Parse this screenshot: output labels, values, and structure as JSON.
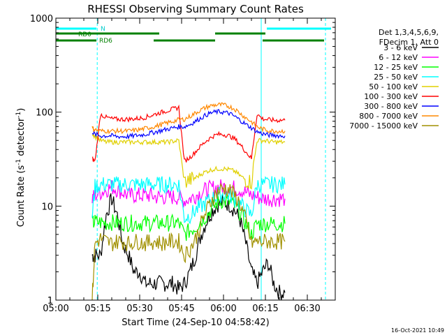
{
  "chart_data": {
    "type": "line",
    "title": "RHESSI Observing Summary Count Rates",
    "xlabel": "Start Time (24-Sep-10 04:58:42)",
    "ylabel_main": "Count Rate (s",
    "ylabel_sup1": "-1",
    "ylabel_mid": " detector",
    "ylabel_sup2": "-1",
    "ylabel_end": ")",
    "x_unit": "minutes after 05:00",
    "xlim": [
      0,
      100
    ],
    "ylim": [
      1,
      1000
    ],
    "yscale": "log",
    "x_ticks": [
      {
        "v": 0,
        "label": "05:00"
      },
      {
        "v": 15,
        "label": "05:15"
      },
      {
        "v": 30,
        "label": "05:30"
      },
      {
        "v": 45,
        "label": "05:45"
      },
      {
        "v": 60,
        "label": "06:00"
      },
      {
        "v": 75,
        "label": "06:15"
      },
      {
        "v": 90,
        "label": "06:30"
      }
    ],
    "y_ticks": [
      {
        "v": 1,
        "label": "1"
      },
      {
        "v": 10,
        "label": "10"
      },
      {
        "v": 100,
        "label": "100"
      },
      {
        "v": 1000,
        "label": "1000"
      }
    ],
    "legend": {
      "header_lines": [
        "Det 1,3,4,5,6,9,",
        "FDecim 1, Att 0"
      ],
      "placement": "right"
    },
    "series": [
      {
        "name": "3 - 6 keV",
        "color": "#000000",
        "x": [
          13,
          14,
          16,
          18,
          20,
          22,
          24,
          26,
          28,
          30,
          32,
          34,
          36,
          38,
          40,
          42,
          44,
          46,
          48,
          50,
          52,
          54,
          56,
          58,
          60,
          62,
          64,
          66,
          68,
          70,
          72,
          74,
          76,
          78,
          80,
          82
        ],
        "y": [
          3,
          3,
          3,
          8,
          12,
          8,
          4,
          3,
          2,
          2,
          1.5,
          1.5,
          1.5,
          1.5,
          1.5,
          1.5,
          1.3,
          1.5,
          2,
          3,
          5,
          7,
          9,
          10.5,
          11,
          10.5,
          9,
          7,
          4,
          2,
          1.5,
          2,
          2.5,
          1.5,
          1.2,
          1.2
        ]
      },
      {
        "name": "6 - 12 keV",
        "color": "#ff00ff",
        "x": [
          13,
          14,
          16,
          18,
          20,
          22,
          24,
          26,
          28,
          30,
          32,
          34,
          36,
          38,
          40,
          42,
          44,
          46,
          48,
          50,
          52,
          54,
          56,
          58,
          60,
          62,
          64,
          66,
          68,
          70,
          72,
          74,
          76,
          78,
          80,
          82
        ],
        "y": [
          12,
          13,
          14,
          15,
          16,
          15,
          14,
          13,
          13,
          13,
          13,
          13,
          12.5,
          12.5,
          12.5,
          12.5,
          12.5,
          11.5,
          12,
          13,
          14,
          15,
          15.5,
          16,
          16,
          16,
          15.5,
          15,
          14,
          13,
          12.5,
          12,
          12,
          12,
          12,
          12
        ]
      },
      {
        "name": "12 - 25 keV",
        "color": "#00ff00",
        "x": [
          13,
          14,
          16,
          18,
          20,
          22,
          24,
          26,
          28,
          30,
          32,
          34,
          36,
          38,
          40,
          42,
          44,
          46,
          48,
          50,
          52,
          54,
          56,
          58,
          60,
          62,
          64,
          66,
          68,
          70,
          72,
          74,
          76,
          78,
          80,
          82
        ],
        "y": [
          6.5,
          6.8,
          6.7,
          6.6,
          6.7,
          6.6,
          6.6,
          6.6,
          6.6,
          6.6,
          6.6,
          6.6,
          6.6,
          6.6,
          6.6,
          6.6,
          6.6,
          5,
          5.5,
          6,
          7,
          8,
          9.5,
          11,
          11.5,
          11,
          10,
          8.5,
          6.5,
          5,
          6.5,
          6.5,
          6.5,
          6.5,
          6.5,
          6.5
        ]
      },
      {
        "name": "25 - 50 keV",
        "color": "#00ffff",
        "x": [
          13,
          14,
          16,
          18,
          20,
          22,
          24,
          26,
          28,
          30,
          32,
          34,
          36,
          38,
          40,
          42,
          44,
          46,
          48,
          50,
          52,
          54,
          56,
          58,
          60,
          62,
          64,
          66,
          68,
          70,
          72,
          74,
          76,
          78,
          80,
          82
        ],
        "y": [
          8,
          16,
          17,
          17,
          17,
          17,
          17,
          17,
          17,
          17,
          17,
          17,
          17,
          17,
          17,
          17,
          17,
          7.5,
          8,
          9,
          10,
          11,
          12,
          13,
          13.5,
          13,
          12,
          10.5,
          9,
          8,
          17,
          17,
          17,
          17,
          17,
          17
        ]
      },
      {
        "name": "50 - 100 keV",
        "color": "#e0d000",
        "x": [
          13,
          14,
          16,
          18,
          20,
          22,
          24,
          26,
          28,
          30,
          32,
          34,
          36,
          38,
          40,
          42,
          44,
          46,
          48,
          50,
          52,
          54,
          56,
          58,
          60,
          62,
          64,
          66,
          68,
          70,
          72,
          74,
          76,
          78,
          80,
          82
        ],
        "y": [
          60,
          55,
          50,
          48,
          48,
          48,
          48,
          48,
          48,
          48,
          48,
          48,
          48,
          48,
          48,
          49,
          50,
          18,
          19,
          20,
          22,
          23.5,
          24.5,
          25,
          25,
          24.5,
          23.5,
          21,
          19,
          18,
          50,
          50,
          49,
          48,
          48,
          48
        ]
      },
      {
        "name": "100 - 300 keV",
        "color": "#ff0000",
        "x": [
          13,
          14,
          16,
          18,
          20,
          22,
          24,
          26,
          28,
          30,
          32,
          34,
          36,
          38,
          40,
          42,
          44,
          46,
          48,
          50,
          52,
          54,
          56,
          58,
          60,
          62,
          64,
          66,
          68,
          70,
          72,
          74,
          76,
          78,
          80,
          82
        ],
        "y": [
          32,
          30,
          95,
          88,
          85,
          84,
          84,
          84,
          85,
          86,
          88,
          92,
          96,
          100,
          104,
          108,
          112,
          30,
          33,
          38,
          44,
          50,
          55,
          58,
          58,
          56,
          52,
          45,
          38,
          32,
          95,
          85,
          83,
          82,
          82,
          82
        ]
      },
      {
        "name": "300 - 800 keV",
        "color": "#0000ff",
        "x": [
          13,
          14,
          16,
          18,
          20,
          22,
          24,
          26,
          28,
          30,
          32,
          34,
          36,
          38,
          40,
          42,
          44,
          46,
          48,
          50,
          52,
          54,
          56,
          58,
          60,
          62,
          64,
          66,
          68,
          70,
          72,
          74,
          76,
          78,
          80,
          82
        ],
        "y": [
          62,
          58,
          56,
          56,
          56,
          55,
          55,
          55,
          56,
          57,
          58,
          60,
          62,
          64,
          66,
          68,
          70,
          70,
          74,
          80,
          87,
          94,
          99,
          101,
          100,
          97,
          90,
          82,
          74,
          68,
          62,
          59,
          57,
          57,
          56,
          56
        ]
      },
      {
        "name": "800 - 7000 keV",
        "color": "#ff8800",
        "x": [
          13,
          14,
          16,
          18,
          20,
          22,
          24,
          26,
          28,
          30,
          32,
          34,
          36,
          38,
          40,
          42,
          44,
          46,
          48,
          50,
          52,
          54,
          56,
          58,
          60,
          62,
          64,
          66,
          68,
          70,
          72,
          74,
          76,
          78,
          80,
          82
        ],
        "y": [
          68,
          65,
          63,
          63,
          63,
          63,
          63,
          63,
          64,
          65,
          67,
          69,
          71,
          74,
          77,
          80,
          83,
          84,
          90,
          98,
          106,
          113,
          118,
          120,
          119,
          115,
          108,
          97,
          87,
          79,
          70,
          66,
          64,
          63,
          63,
          63
        ]
      },
      {
        "name": "7000 - 15000 keV",
        "color": "#a09000",
        "x": [
          13,
          14,
          16,
          18,
          20,
          22,
          24,
          26,
          28,
          30,
          32,
          34,
          36,
          38,
          40,
          42,
          44,
          46,
          48,
          50,
          52,
          54,
          56,
          58,
          60,
          62,
          64,
          66,
          68,
          70,
          72,
          74,
          76,
          78,
          80,
          82
        ],
        "y": [
          1,
          4,
          4.5,
          4.2,
          4,
          4.2,
          4.2,
          4,
          4.2,
          4.2,
          4,
          4.2,
          4.2,
          4,
          4.2,
          4.2,
          4.2,
          3,
          3.5,
          4.5,
          6.5,
          9,
          12,
          14.5,
          15.5,
          15,
          13,
          10.5,
          7,
          4,
          4.2,
          4.2,
          4.2,
          4.2,
          4.2,
          4.2
        ]
      }
    ],
    "state_bars": [
      {
        "label": "N",
        "color": "#00ffff",
        "level": "top",
        "segments": [
          [
            0,
            14.5
          ],
          [
            75.5,
            98.5
          ]
        ]
      },
      {
        "label": "RD0",
        "color": "#008000",
        "level": "upper",
        "segments": [
          [
            0,
            14.5
          ],
          [
            14.5,
            37
          ],
          [
            57,
            75
          ]
        ]
      },
      {
        "label": "RD6",
        "color": "#008000",
        "level": "lower",
        "segments": [
          [
            0,
            14.5
          ],
          [
            35,
            57
          ],
          [
            74,
            96
          ]
        ]
      }
    ],
    "vertical_markers": [
      {
        "x": 0,
        "color": "#00ffff",
        "style": "solid"
      },
      {
        "x": 14.8,
        "color": "#00ffff",
        "style": "dashed"
      },
      {
        "x": 73.5,
        "color": "#00ffff",
        "style": "solid"
      },
      {
        "x": 96.5,
        "color": "#00ffff",
        "style": "dashed"
      }
    ],
    "grid": false
  },
  "footer": {
    "timestamp": "16-Oct-2021 10:49"
  }
}
